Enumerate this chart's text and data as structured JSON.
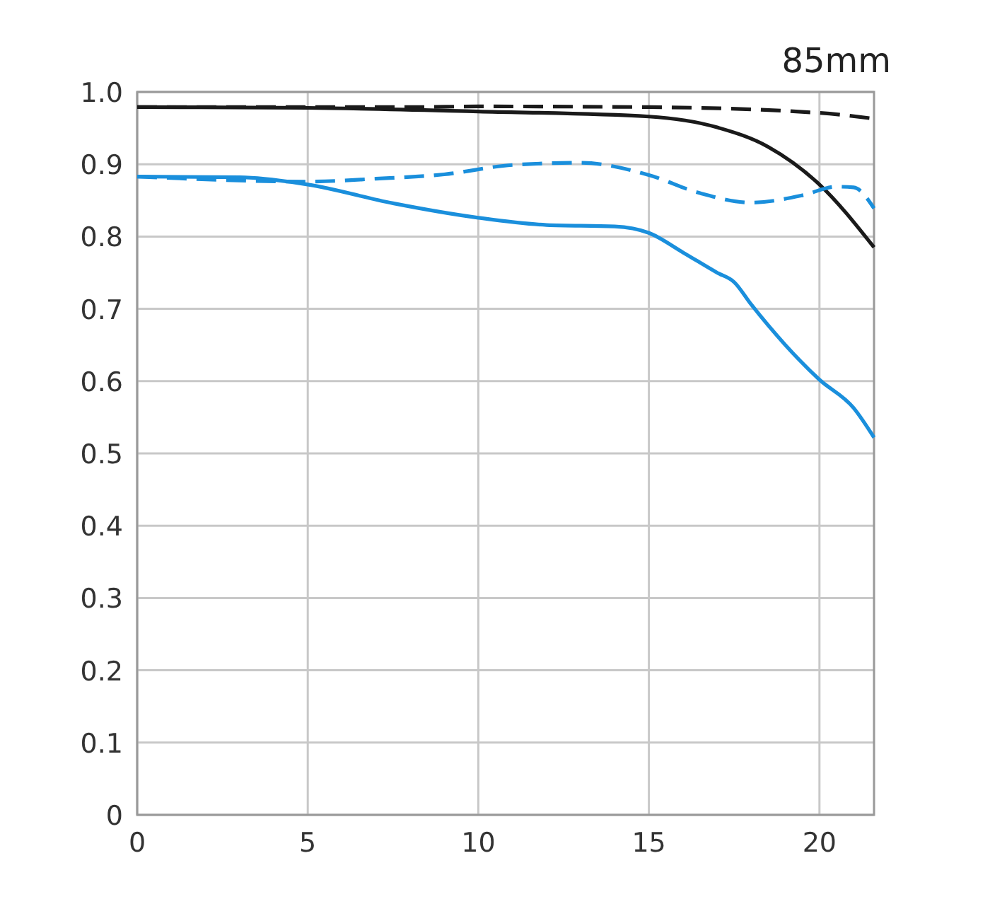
{
  "chart_data": {
    "type": "line",
    "title": "85mm",
    "xlim": [
      0,
      21.6
    ],
    "xticks": [
      0,
      5,
      10,
      15,
      20
    ],
    "ylim": [
      0,
      1
    ],
    "yticks": [
      {
        "value": 0,
        "label": "0"
      },
      0.1,
      0.2,
      0.3,
      0.4,
      0.5,
      0.6,
      0.7,
      0.8,
      0.9,
      {
        "value": 1,
        "label": "1.0"
      }
    ],
    "grid": true,
    "marker": "none",
    "series": [
      {
        "color": "#1a1a1a",
        "line_style": "dashed",
        "x": [
          0,
          5,
          8,
          10,
          15,
          20,
          21.6
        ],
        "values": [
          0.979,
          0.979,
          0.979,
          0.98,
          0.979,
          0.971,
          0.963
        ]
      },
      {
        "color": "#1a1a1a",
        "line_style": "solid",
        "x": [
          0,
          5,
          10,
          15,
          17,
          18.5,
          20,
          21.6
        ],
        "values": [
          0.979,
          0.978,
          0.973,
          0.966,
          0.951,
          0.924,
          0.872,
          0.785
        ]
      },
      {
        "color": "#1a8fdc",
        "line_style": "dashed",
        "x": [
          0,
          5,
          7,
          9,
          11,
          13,
          15,
          16.5,
          18,
          19.5,
          20.5,
          21,
          21.6
        ],
        "values": [
          0.883,
          0.876,
          0.88,
          0.886,
          0.899,
          0.902,
          0.885,
          0.86,
          0.847,
          0.857,
          0.869,
          0.868,
          0.839
        ]
      },
      {
        "color": "#1a8fdc",
        "line_style": "solid",
        "x": [
          0,
          3,
          5,
          7.5,
          10,
          12,
          14,
          15,
          16,
          17,
          17.5,
          18,
          19,
          20,
          21,
          21.6
        ],
        "values": [
          0.883,
          0.882,
          0.872,
          0.846,
          0.826,
          0.816,
          0.814,
          0.805,
          0.778,
          0.75,
          0.737,
          0.706,
          0.65,
          0.602,
          0.563,
          0.522
        ]
      }
    ]
  }
}
